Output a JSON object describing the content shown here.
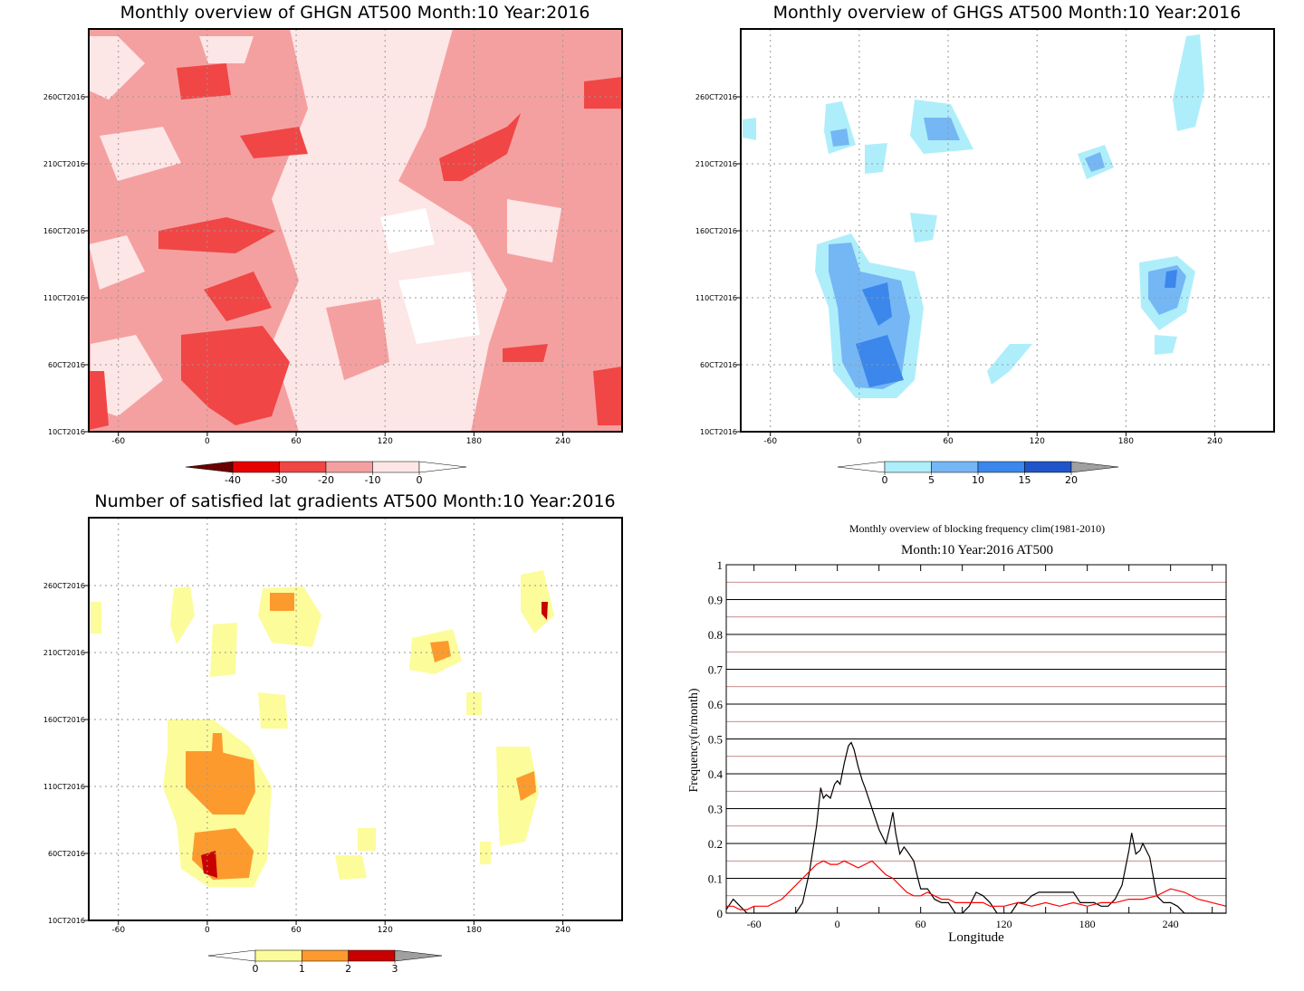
{
  "chart_data": [
    {
      "type": "heatmap",
      "title": "Monthly overview of GHGN AT500 Month:10 Year:2016",
      "x_ticks": [
        "-60",
        "0",
        "60",
        "120",
        "180",
        "240"
      ],
      "y_ticks": [
        "10CT2016",
        "60CT2016",
        "110CT2016",
        "160CT2016",
        "210CT2016",
        "260CT2016"
      ],
      "xlim": [
        -80,
        280
      ],
      "colorbar": {
        "labels": [
          "-40",
          "-30",
          "-20",
          "-10",
          "0"
        ],
        "colors": [
          "#6b0000",
          "#e60000",
          "#f04646",
          "#f5a0a0",
          "#fde6e6",
          "#ffffff"
        ]
      },
      "grid": true
    },
    {
      "type": "heatmap",
      "title": "Monthly overview of GHGS AT500 Month:10 Year:2016",
      "x_ticks": [
        "-60",
        "0",
        "60",
        "120",
        "180",
        "240"
      ],
      "y_ticks": [
        "10CT2016",
        "60CT2016",
        "110CT2016",
        "160CT2016",
        "210CT2016",
        "260CT2016"
      ],
      "xlim": [
        -80,
        280
      ],
      "colorbar": {
        "labels": [
          "0",
          "5",
          "10",
          "15",
          "20"
        ],
        "colors": [
          "#ffffff",
          "#aeeefa",
          "#75b6f5",
          "#3b87eb",
          "#1f55c8",
          "#a0a0a0"
        ]
      },
      "grid": true
    },
    {
      "type": "heatmap",
      "title": "Number of satisfied lat gradients AT500 Month:10 Year:2016",
      "x_ticks": [
        "-60",
        "0",
        "60",
        "120",
        "180",
        "240"
      ],
      "y_ticks": [
        "10CT2016",
        "60CT2016",
        "110CT2016",
        "160CT2016",
        "210CT2016",
        "260CT2016"
      ],
      "xlim": [
        -80,
        280
      ],
      "colorbar": {
        "labels": [
          "0",
          "1",
          "2",
          "3"
        ],
        "colors": [
          "#ffffff",
          "#fcfc9a",
          "#fd9a2e",
          "#c80000",
          "#a0a0a0"
        ]
      },
      "grid": true
    },
    {
      "type": "line",
      "title": "Monthly overview of blocking frequency clim(1981-2010)",
      "subtitle": "Month:10 Year:2016  AT500",
      "xlabel": "Longitude",
      "ylabel": "Frequency(n/month)",
      "xlim": [
        -80,
        280
      ],
      "ylim": [
        0,
        1
      ],
      "x_ticks": [
        "-60",
        "0",
        "60",
        "120",
        "180",
        "240"
      ],
      "y_ticks": [
        "0",
        "0.1",
        "0.2",
        "0.3",
        "0.4",
        "0.5",
        "0.6",
        "0.7",
        "0.8",
        "0.9",
        "1"
      ],
      "grid": true,
      "series": [
        {
          "color": "#000000",
          "x": [
            -80,
            -75,
            -70,
            -65,
            -60,
            -50,
            -40,
            -30,
            -25,
            -20,
            -15,
            -12,
            -10,
            -8,
            -5,
            -2,
            0,
            2,
            5,
            8,
            10,
            12,
            15,
            18,
            20,
            25,
            30,
            35,
            38,
            40,
            42,
            45,
            48,
            50,
            55,
            58,
            60,
            65,
            70,
            75,
            80,
            85,
            90,
            95,
            100,
            105,
            110,
            115,
            120,
            125,
            130,
            135,
            140,
            145,
            150,
            155,
            160,
            165,
            170,
            175,
            180,
            185,
            190,
            195,
            200,
            205,
            208,
            210,
            212,
            215,
            218,
            220,
            225,
            230,
            235,
            240,
            245,
            250,
            255,
            260,
            265,
            270,
            275,
            280
          ],
          "y": [
            0.01,
            0.04,
            0.02,
            0.0,
            0.0,
            0.0,
            0.0,
            0.0,
            0.03,
            0.12,
            0.25,
            0.36,
            0.33,
            0.34,
            0.33,
            0.37,
            0.38,
            0.37,
            0.43,
            0.48,
            0.49,
            0.47,
            0.42,
            0.38,
            0.36,
            0.3,
            0.24,
            0.2,
            0.25,
            0.29,
            0.23,
            0.17,
            0.19,
            0.18,
            0.15,
            0.1,
            0.07,
            0.07,
            0.04,
            0.03,
            0.03,
            0.0,
            0.0,
            0.02,
            0.06,
            0.05,
            0.03,
            0.0,
            0.0,
            0.0,
            0.03,
            0.03,
            0.05,
            0.06,
            0.06,
            0.06,
            0.06,
            0.06,
            0.06,
            0.03,
            0.03,
            0.03,
            0.02,
            0.02,
            0.04,
            0.08,
            0.14,
            0.18,
            0.23,
            0.17,
            0.18,
            0.2,
            0.16,
            0.05,
            0.03,
            0.03,
            0.02,
            0.0,
            0.0,
            0.0,
            0.0,
            0.0,
            0.0,
            0.0
          ]
        },
        {
          "color": "#ff0000",
          "x": [
            -80,
            -75,
            -70,
            -65,
            -60,
            -55,
            -50,
            -45,
            -40,
            -35,
            -30,
            -25,
            -20,
            -15,
            -10,
            -5,
            0,
            5,
            10,
            15,
            20,
            25,
            30,
            35,
            40,
            45,
            50,
            55,
            60,
            65,
            70,
            75,
            80,
            85,
            90,
            95,
            100,
            105,
            110,
            115,
            120,
            130,
            140,
            150,
            160,
            170,
            180,
            190,
            200,
            210,
            220,
            230,
            240,
            250,
            260,
            270,
            280
          ],
          "y": [
            0.02,
            0.02,
            0.01,
            0.01,
            0.02,
            0.02,
            0.02,
            0.03,
            0.04,
            0.06,
            0.08,
            0.1,
            0.12,
            0.14,
            0.15,
            0.14,
            0.14,
            0.15,
            0.14,
            0.13,
            0.14,
            0.15,
            0.13,
            0.11,
            0.1,
            0.08,
            0.06,
            0.05,
            0.05,
            0.06,
            0.05,
            0.04,
            0.04,
            0.03,
            0.03,
            0.03,
            0.03,
            0.03,
            0.02,
            0.02,
            0.02,
            0.03,
            0.02,
            0.03,
            0.02,
            0.03,
            0.02,
            0.03,
            0.03,
            0.04,
            0.04,
            0.05,
            0.07,
            0.06,
            0.04,
            0.03,
            0.02
          ]
        }
      ]
    }
  ]
}
